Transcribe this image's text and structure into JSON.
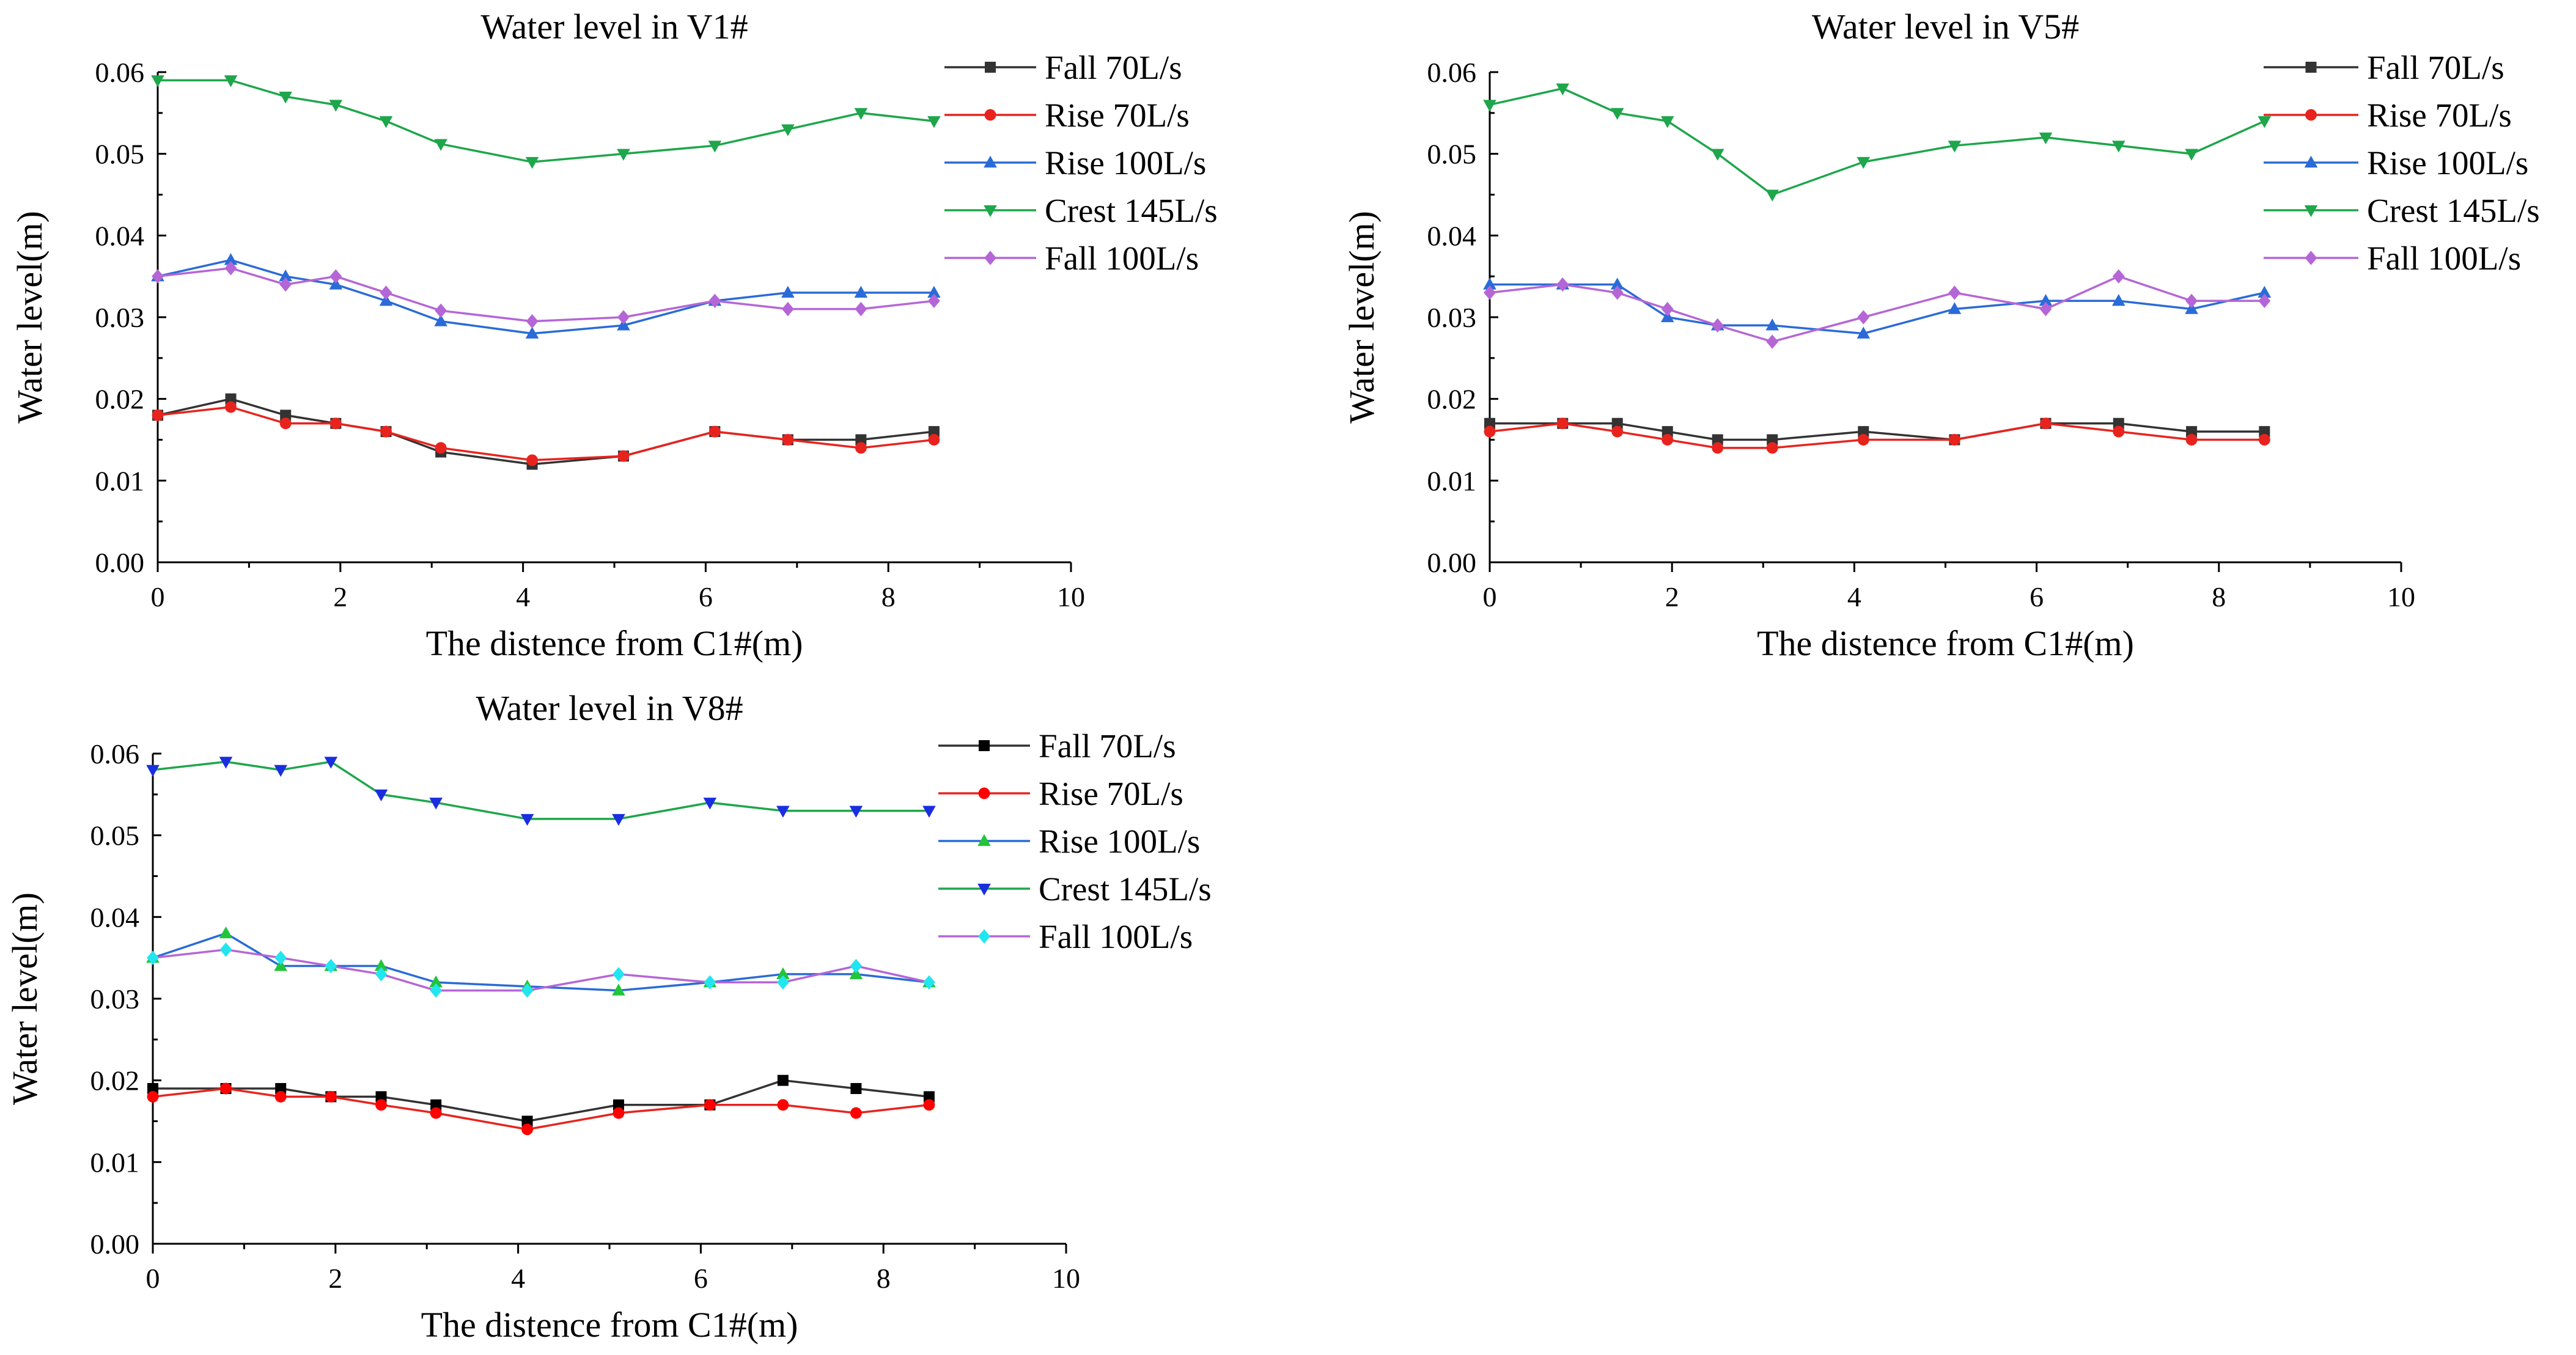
{
  "chart_data": [
    {
      "id": "v1",
      "type": "line",
      "title": "Water level in V1#",
      "xlabel": "The distence from C1#(m)",
      "ylabel": "Water level(m)",
      "xlim": [
        0,
        10
      ],
      "ylim": [
        0,
        0.06
      ],
      "xticks": [
        0,
        2,
        4,
        6,
        8,
        10
      ],
      "yticks": [
        0.0,
        0.01,
        0.02,
        0.03,
        0.04,
        0.05,
        0.06
      ],
      "grid": false,
      "legend_position": "top-right",
      "x": [
        0,
        0.8,
        1.4,
        1.95,
        2.5,
        3.1,
        4.1,
        5.1,
        6.1,
        6.9,
        7.7,
        8.5
      ],
      "series": [
        {
          "name": "Fall 70L/s",
          "color": "#333333",
          "marker": "square",
          "values": [
            0.018,
            0.02,
            0.018,
            0.017,
            0.016,
            0.0135,
            0.012,
            0.013,
            0.016,
            0.015,
            0.015,
            0.016
          ]
        },
        {
          "name": "Rise 70L/s",
          "color": "#e8231d",
          "marker": "circle",
          "values": [
            0.018,
            0.019,
            0.017,
            0.017,
            0.016,
            0.014,
            0.0125,
            0.013,
            0.016,
            0.015,
            0.014,
            0.015
          ]
        },
        {
          "name": "Rise 100L/s",
          "color": "#2a6bd8",
          "marker": "triangle-up",
          "values": [
            0.035,
            0.037,
            0.035,
            0.034,
            0.032,
            0.0295,
            0.028,
            0.029,
            0.032,
            0.033,
            0.033,
            0.033
          ]
        },
        {
          "name": "Crest 145L/s",
          "color": "#1ea64b",
          "marker": "triangle-down",
          "values": [
            0.059,
            0.059,
            0.057,
            0.056,
            0.054,
            0.0512,
            0.049,
            0.05,
            0.051,
            0.053,
            0.055,
            0.054
          ]
        },
        {
          "name": "Fall 100L/s",
          "color": "#b566d6",
          "marker": "diamond",
          "values": [
            0.035,
            0.036,
            0.034,
            0.035,
            0.033,
            0.0308,
            0.0295,
            0.03,
            0.032,
            0.031,
            0.031,
            0.032
          ]
        }
      ]
    },
    {
      "id": "v5",
      "type": "line",
      "title": "Water level in V5#",
      "xlabel": "The distence from C1#(m)",
      "ylabel": "Water level(m)",
      "xlim": [
        0,
        10
      ],
      "ylim": [
        0,
        0.06
      ],
      "xticks": [
        0,
        2,
        4,
        6,
        8,
        10
      ],
      "yticks": [
        0.0,
        0.01,
        0.02,
        0.03,
        0.04,
        0.05,
        0.06
      ],
      "grid": false,
      "legend_position": "top-right",
      "x": [
        0,
        0.8,
        1.4,
        1.95,
        2.5,
        3.1,
        4.1,
        5.1,
        6.1,
        6.9,
        7.7,
        8.5
      ],
      "series": [
        {
          "name": "Fall 70L/s",
          "color": "#333333",
          "marker": "square",
          "values": [
            0.017,
            0.017,
            0.017,
            0.016,
            0.015,
            0.015,
            0.016,
            0.015,
            0.017,
            0.017,
            0.016,
            0.016
          ]
        },
        {
          "name": "Rise 70L/s",
          "color": "#e8231d",
          "marker": "circle",
          "values": [
            0.016,
            0.017,
            0.016,
            0.015,
            0.014,
            0.014,
            0.015,
            0.015,
            0.017,
            0.016,
            0.015,
            0.015
          ]
        },
        {
          "name": "Rise 100L/s",
          "color": "#2a6bd8",
          "marker": "triangle-up",
          "values": [
            0.034,
            0.034,
            0.034,
            0.03,
            0.029,
            0.029,
            0.028,
            0.031,
            0.032,
            0.032,
            0.031,
            0.033
          ]
        },
        {
          "name": "Crest 145L/s",
          "color": "#1ea64b",
          "marker": "triangle-down",
          "values": [
            0.056,
            0.058,
            0.055,
            0.054,
            0.05,
            0.045,
            0.049,
            0.051,
            0.052,
            0.051,
            0.05,
            0.054
          ]
        },
        {
          "name": "Fall 100L/s",
          "color": "#b566d6",
          "marker": "diamond",
          "values": [
            0.033,
            0.034,
            0.033,
            0.031,
            0.029,
            0.027,
            0.03,
            0.033,
            0.031,
            0.035,
            0.032,
            0.032
          ]
        }
      ]
    },
    {
      "id": "v8",
      "type": "line",
      "title": "Water level in V8#",
      "xlabel": "The distence from C1#(m)",
      "ylabel": "Water level(m)",
      "xlim": [
        0,
        10
      ],
      "ylim": [
        0,
        0.06
      ],
      "xticks": [
        0,
        2,
        4,
        6,
        8,
        10
      ],
      "yticks": [
        0.0,
        0.01,
        0.02,
        0.03,
        0.04,
        0.05,
        0.06
      ],
      "grid": false,
      "legend_position": "top-right",
      "x": [
        0,
        0.8,
        1.4,
        1.95,
        2.5,
        3.1,
        4.1,
        5.1,
        6.1,
        6.9,
        7.7,
        8.5
      ],
      "series": [
        {
          "name": "Fall 70L/s",
          "color": "#333333",
          "marker": "square",
          "marker_color": "#000000",
          "values": [
            0.019,
            0.019,
            0.019,
            0.018,
            0.018,
            0.017,
            0.015,
            0.017,
            0.017,
            0.02,
            0.019,
            0.018
          ]
        },
        {
          "name": "Rise 70L/s",
          "color": "#e8231d",
          "marker": "circle",
          "marker_color": "#ff0000",
          "values": [
            0.018,
            0.019,
            0.018,
            0.018,
            0.017,
            0.016,
            0.014,
            0.016,
            0.017,
            0.017,
            0.016,
            0.017
          ]
        },
        {
          "name": "Rise 100L/s",
          "color": "#2a6bd8",
          "marker": "triangle-up",
          "marker_color": "#22c43a",
          "values": [
            0.035,
            0.038,
            0.034,
            0.034,
            0.034,
            0.032,
            0.0315,
            0.031,
            0.032,
            0.033,
            0.033,
            0.032
          ]
        },
        {
          "name": "Crest 145L/s",
          "color": "#1ea64b",
          "marker": "triangle-down",
          "marker_color": "#1a2ee0",
          "values": [
            0.058,
            0.059,
            0.058,
            0.059,
            0.055,
            0.054,
            0.052,
            0.052,
            0.054,
            0.053,
            0.053,
            0.053
          ]
        },
        {
          "name": "Fall 100L/s",
          "color": "#b566d6",
          "marker": "diamond",
          "marker_color": "#22e5f0",
          "values": [
            0.035,
            0.036,
            0.035,
            0.034,
            0.033,
            0.031,
            0.031,
            0.033,
            0.032,
            0.032,
            0.034,
            0.032
          ]
        }
      ]
    }
  ]
}
